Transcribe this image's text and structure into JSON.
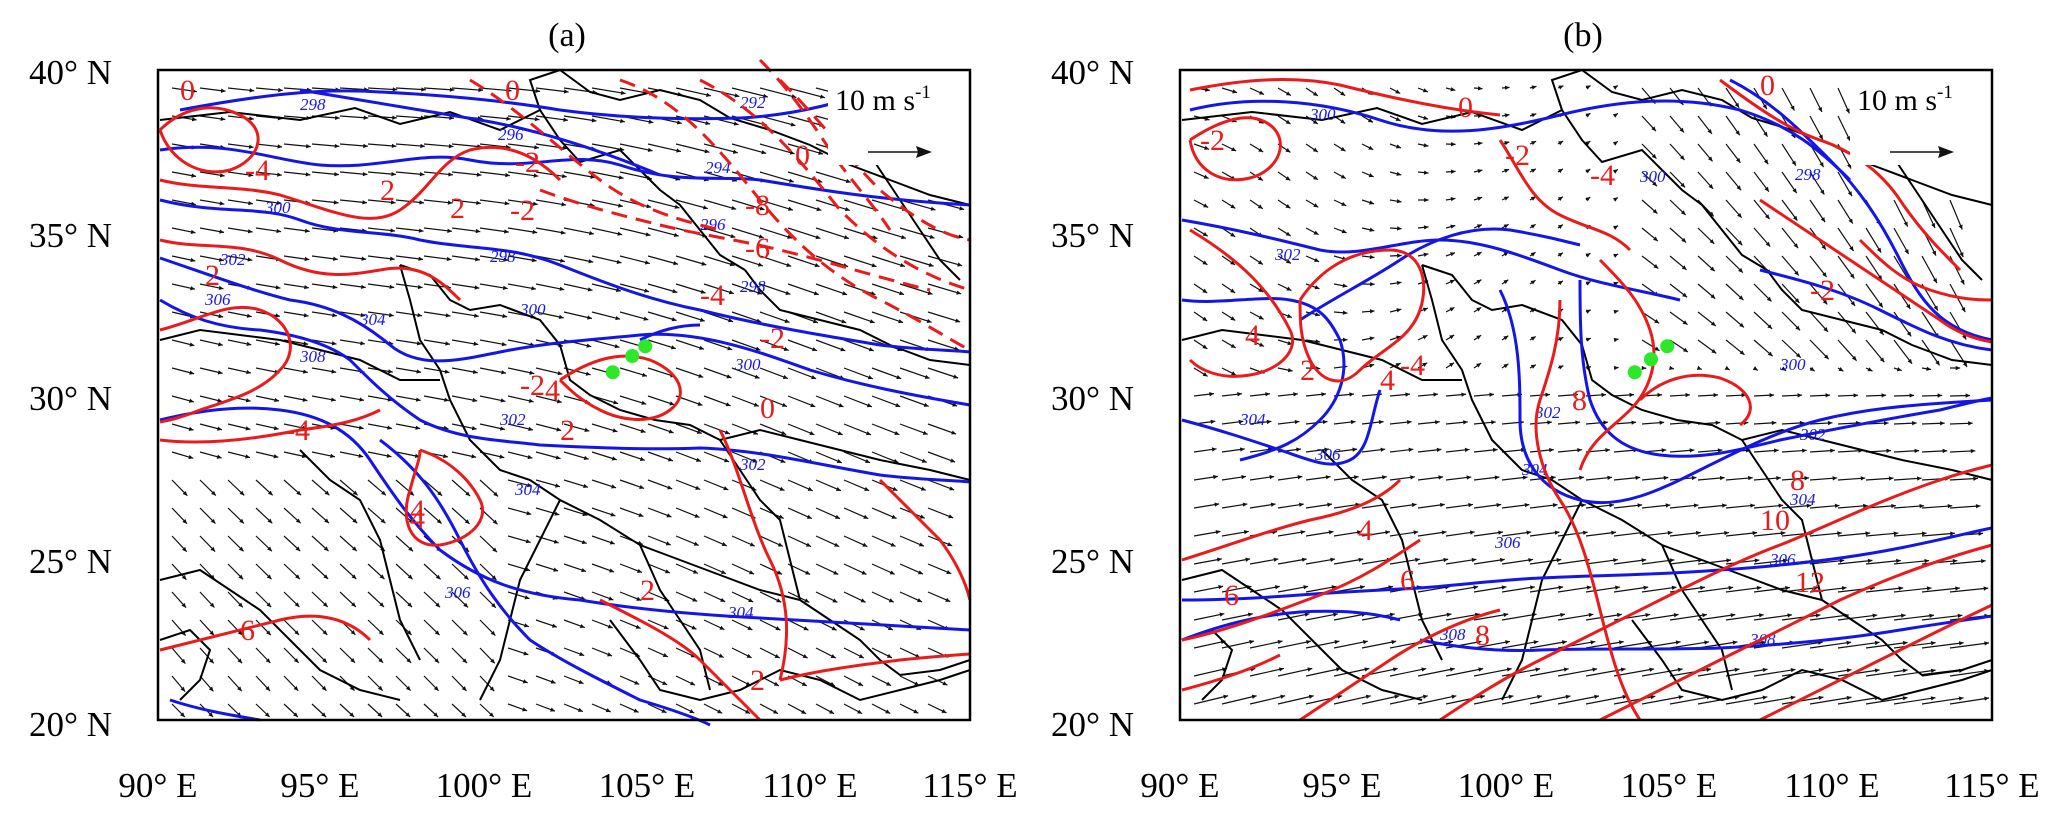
{
  "panels": [
    {
      "id": "a",
      "title": "(a)",
      "reference_vector": {
        "label": "10 m s",
        "exponent": "-1"
      },
      "chart_data": {
        "type": "contour-vector map",
        "xlim": [
          90,
          115
        ],
        "ylim": [
          20,
          40
        ],
        "x_tick_labels": [
          "90° E",
          "95° E",
          "100° E",
          "105° E",
          "110° E",
          "115° E"
        ],
        "y_tick_labels": [
          "40° N",
          "35° N",
          "30° N",
          "25° N",
          "20° N"
        ],
        "blue_contour_labels": [
          "298",
          "296",
          "292",
          "294",
          "296",
          "300",
          "298",
          "302",
          "298",
          "300",
          "306",
          "304",
          "308",
          "300",
          "302",
          "302",
          "304",
          "304",
          "306"
        ],
        "red_contour_labels": [
          "0",
          "0",
          "-4",
          "2",
          "-2",
          "2",
          "-2",
          "0",
          "-8",
          "-6",
          "-4",
          "-2",
          "0",
          "2",
          "-4",
          "-2",
          "4",
          "2",
          "4",
          "4",
          "6",
          "2",
          "2"
        ],
        "site_points": [
          [
            104.0,
            30.7
          ],
          [
            104.6,
            31.2
          ],
          [
            105.0,
            31.5
          ]
        ]
      }
    },
    {
      "id": "b",
      "title": "(b)",
      "reference_vector": {
        "label": "10 m s",
        "exponent": "-1"
      },
      "chart_data": {
        "type": "contour-vector map",
        "xlim": [
          90,
          115
        ],
        "ylim": [
          20,
          40
        ],
        "x_tick_labels": [
          "90° E",
          "95° E",
          "100° E",
          "105° E",
          "110° E",
          "115° E"
        ],
        "y_tick_labels": [
          "40° N",
          "35° N",
          "30° N",
          "25° N",
          "20° N"
        ],
        "blue_contour_labels": [
          "300",
          "300",
          "298",
          "302",
          "300",
          "304",
          "306",
          "302",
          "304",
          "302",
          "304",
          "306",
          "306",
          "308",
          "308"
        ],
        "red_contour_labels": [
          "0",
          "0",
          "-2",
          "-2",
          "-4",
          "-2",
          "-4",
          "4",
          "2",
          "4",
          "8",
          "8",
          "4",
          "6",
          "10",
          "12",
          "6",
          "8"
        ],
        "site_points": [
          [
            104.0,
            30.7
          ],
          [
            104.5,
            31.1
          ],
          [
            105.0,
            31.5
          ]
        ]
      }
    }
  ]
}
